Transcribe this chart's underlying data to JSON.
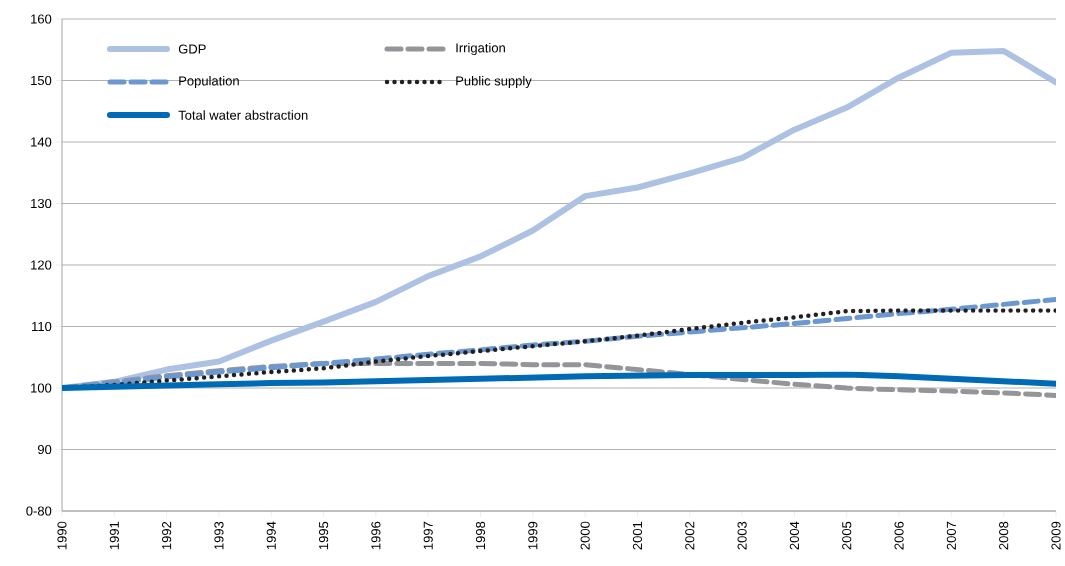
{
  "chart_data": {
    "type": "line",
    "categories": [
      "1990",
      "1991",
      "1992",
      "1993",
      "1994",
      "1995",
      "1996",
      "1997",
      "1998",
      "1999",
      "2000",
      "2001",
      "2002",
      "2003",
      "2004",
      "2005",
      "2006",
      "2007",
      "2008",
      "2009"
    ],
    "series": [
      {
        "name": "GDP",
        "color": "#adc2e3",
        "line_style": "solid",
        "values": [
          100,
          101,
          103,
          104.3,
          107.7,
          110.8,
          114,
          118.2,
          121.4,
          125.6,
          131.2,
          132.6,
          134.9,
          137.4,
          142,
          145.6,
          150.5,
          154.5,
          154.8,
          149.7
        ]
      },
      {
        "name": "Irrigation",
        "color": "#939598",
        "line_style": "dashed",
        "values": [
          100,
          101,
          102,
          102.8,
          103.5,
          104,
          104,
          104,
          104,
          103.8,
          103.8,
          103,
          102.2,
          101.4,
          100.6,
          100,
          99.7,
          99.5,
          99.2,
          98.8
        ]
      },
      {
        "name": "Population",
        "color": "#6b98d0",
        "line_style": "dashed",
        "values": [
          100,
          100.8,
          101.8,
          102.6,
          103.3,
          104,
          104.7,
          105.5,
          106.2,
          107,
          107.6,
          108.4,
          109.1,
          109.8,
          110.5,
          111.3,
          112.1,
          112.8,
          113.6,
          114.4
        ]
      },
      {
        "name": "Public supply",
        "color": "#231f20",
        "line_style": "dotted",
        "values": [
          100,
          100.5,
          101.2,
          101.9,
          102.6,
          103.2,
          104.3,
          105.2,
          106,
          106.8,
          107.6,
          108.5,
          109.6,
          110.6,
          111.5,
          112.5,
          112.6,
          112.6,
          112.6,
          112.6
        ]
      },
      {
        "name": "Total water abstraction",
        "color": "#006ab4",
        "line_style": "solid",
        "values": [
          100,
          100.2,
          100.4,
          100.6,
          100.8,
          100.9,
          101.1,
          101.3,
          101.5,
          101.7,
          101.9,
          102,
          102.1,
          102.1,
          102.1,
          102.2,
          101.9,
          101.5,
          101.1,
          100.7
        ]
      }
    ],
    "ylim": [
      80,
      160
    ],
    "yticks": [
      {
        "value": 80,
        "label": "0-80"
      },
      90,
      100,
      110,
      120,
      130,
      140,
      150,
      160
    ],
    "grid": "y",
    "legend": "top left",
    "marker": "none"
  }
}
